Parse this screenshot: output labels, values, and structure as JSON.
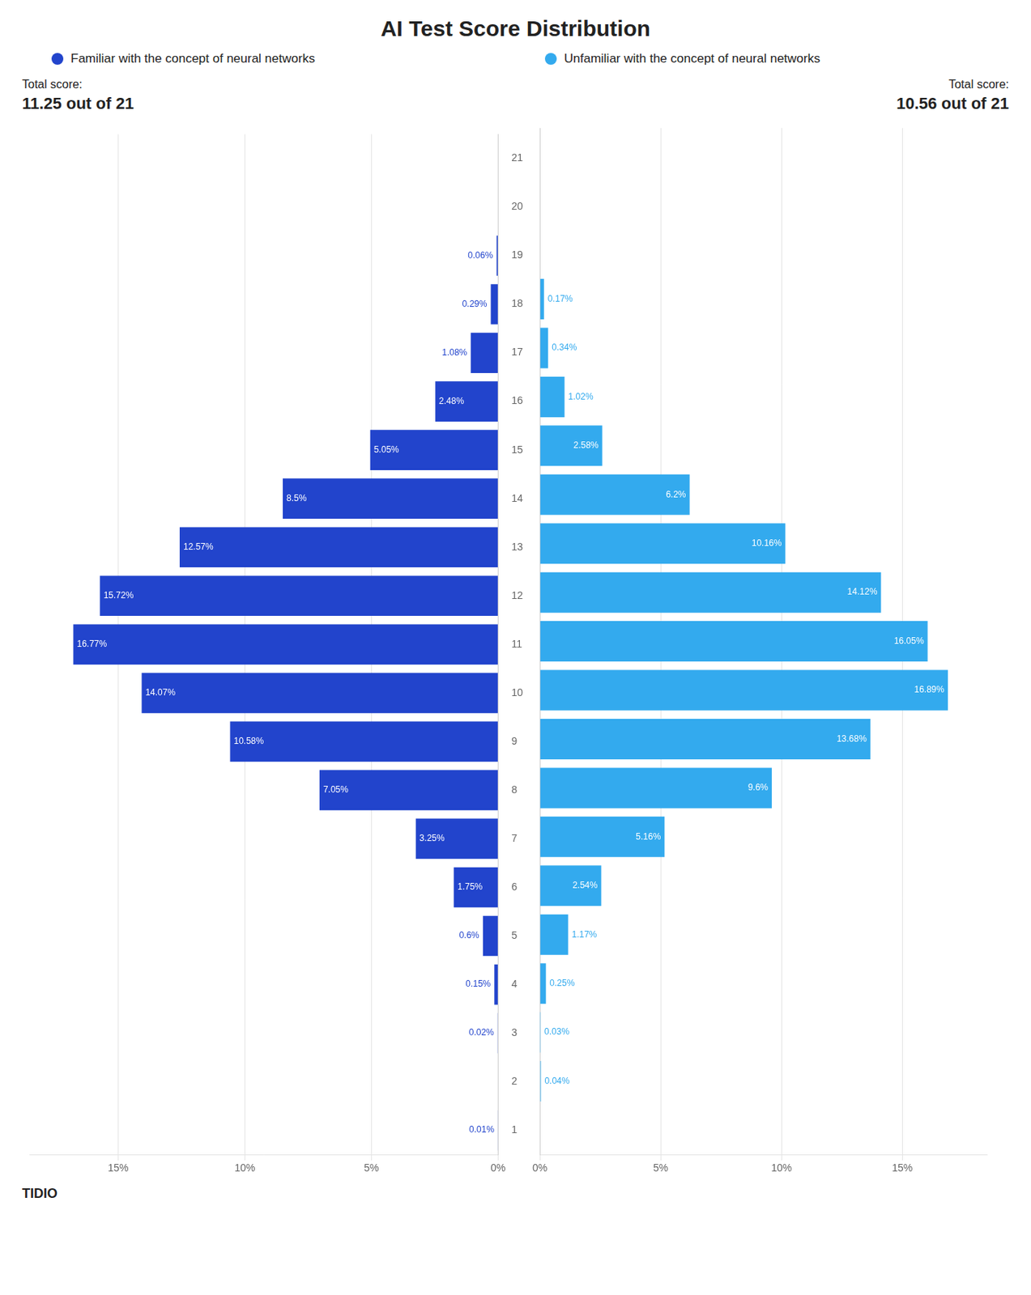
{
  "chart_data": {
    "type": "bar",
    "orientation": "horizontal",
    "title": "AI Test Score Distribution",
    "categories": [
      "1",
      "2",
      "3",
      "4",
      "5",
      "6",
      "7",
      "8",
      "9",
      "10",
      "11",
      "12",
      "13",
      "14",
      "15",
      "16",
      "17",
      "18",
      "19",
      "20",
      "21"
    ],
    "series": [
      {
        "name": "Familiar with the concept of neural networks",
        "color": "#2244cc",
        "values": [
          0.01,
          0.0,
          0.02,
          0.15,
          0.6,
          1.75,
          3.25,
          7.05,
          10.58,
          14.07,
          16.77,
          15.72,
          12.57,
          8.5,
          5.05,
          2.48,
          1.08,
          0.29,
          0.06,
          0.0,
          0.0
        ],
        "value_labels": [
          "0.01%",
          null,
          "0.02%",
          "0.15%",
          "0.6%",
          "1.75%",
          "3.25%",
          "7.05%",
          "10.58%",
          "14.07%",
          "16.77%",
          "15.72%",
          "12.57%",
          "8.5%",
          "5.05%",
          "2.48%",
          "1.08%",
          "0.29%",
          "0.06%",
          null,
          null
        ]
      },
      {
        "name": "Unfamiliar with the concept of neural networks",
        "color": "#33aaee",
        "values": [
          0.0,
          0.04,
          0.03,
          0.25,
          1.17,
          2.54,
          5.16,
          9.6,
          13.68,
          16.89,
          16.05,
          14.12,
          10.16,
          6.2,
          2.58,
          1.02,
          0.34,
          0.17,
          0.0,
          0.0,
          0.0
        ],
        "value_labels": [
          null,
          "0.04%",
          "0.03%",
          "0.25%",
          "1.17%",
          "2.54%",
          "5.16%",
          "9.6%",
          "13.68%",
          "16.89%",
          "16.05%",
          "14.12%",
          "10.16%",
          "6.2%",
          "2.58%",
          "1.02%",
          "0.34%",
          "0.17%",
          null,
          null,
          null
        ]
      }
    ],
    "xlim": [
      0,
      18.5
    ],
    "xticks": [
      {
        "value": 0,
        "label": "0%"
      },
      {
        "value": 5,
        "label": "5%"
      },
      {
        "value": 10,
        "label": "10%"
      },
      {
        "value": 15,
        "label": "15%"
      }
    ],
    "grid": true,
    "data_labels": true,
    "annotations": [
      "Total score:",
      "11.25 out of 21",
      "Total score:",
      "10.56 out of 21",
      "TIDIO"
    ]
  }
}
